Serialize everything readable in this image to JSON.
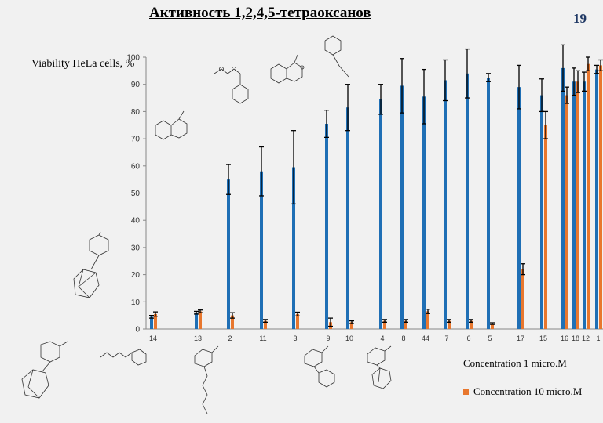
{
  "slide": {
    "title": "Активность 1,2,4,5-тетраоксанов",
    "number": "19"
  },
  "colors": {
    "series1": "#1f6fb5",
    "series2": "#e8772e",
    "error_bar": "#000000",
    "axis": "#888888"
  },
  "chart_data": {
    "type": "bar",
    "title": "",
    "xlabel": "",
    "ylabel": "Viability HeLa cells, %",
    "ylim": [
      0,
      100
    ],
    "yticks": [
      0,
      10,
      20,
      30,
      40,
      50,
      60,
      70,
      80,
      90,
      100
    ],
    "grid": false,
    "legend_position": "bottom-right",
    "categories": [
      "14",
      "13",
      "2",
      "11",
      "3",
      "9",
      "10",
      "4",
      "8",
      "44",
      "7",
      "6",
      "5",
      "17",
      "15",
      "16",
      "18",
      "12",
      "1"
    ],
    "series": [
      {
        "name": "Concentration 1 micro.M",
        "values": [
          4.5,
          6,
          55,
          58,
          59.5,
          75.5,
          81.5,
          84.5,
          89.5,
          85.5,
          91.5,
          94,
          92.5,
          89,
          86,
          96,
          91,
          91,
          95.5
        ],
        "errors": [
          0.5,
          0.5,
          5.5,
          9,
          13.5,
          5,
          8.5,
          5.5,
          10,
          10,
          7.5,
          9,
          1.5,
          8,
          6,
          8.5,
          5,
          3.5,
          1.5
        ]
      },
      {
        "name": "Concentration 10 micro.M",
        "values": [
          5.5,
          6.5,
          5,
          3,
          5.5,
          2.5,
          2.5,
          3,
          3,
          6.5,
          3,
          3,
          2,
          22,
          75,
          86,
          91,
          97.5,
          97
        ],
        "errors": [
          0.8,
          0.5,
          1,
          0.5,
          0.7,
          1.5,
          0.5,
          0.5,
          0.5,
          0.8,
          0.5,
          0.5,
          0.3,
          2,
          5,
          3,
          4,
          2.5,
          2
        ]
      }
    ]
  }
}
